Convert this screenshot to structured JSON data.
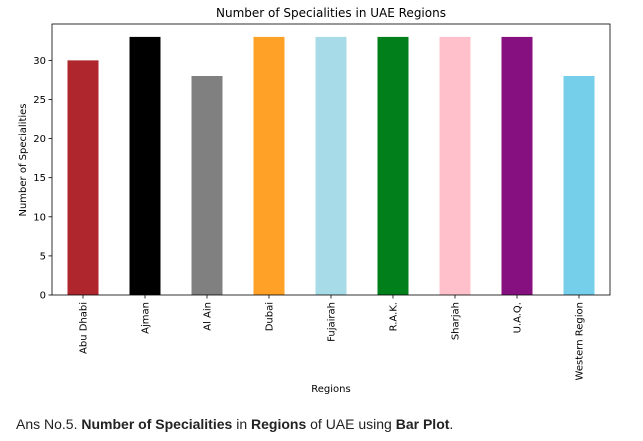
{
  "chart_data": {
    "type": "bar",
    "title": "Number of Specialities in UAE Regions",
    "xlabel": "Regions",
    "ylabel": "Number of Specialities",
    "categories": [
      "Abu Dhabi",
      "Ajman",
      "Al Ain",
      "Dubai",
      "Fujairah",
      "R.A.K.",
      "Sharjah",
      "U.A.Q.",
      "Western Region"
    ],
    "values": [
      30,
      33,
      28,
      33,
      33,
      33,
      33,
      33,
      28
    ],
    "colors": [
      "#b0262d",
      "#000000",
      "#808080",
      "#ffa126",
      "#a7dbe7",
      "#007f1a",
      "#ffc0cb",
      "#871081",
      "#75cfea"
    ],
    "ylim": [
      0,
      34.65
    ],
    "yticks": [
      0,
      5,
      10,
      15,
      20,
      25,
      30
    ],
    "grid": false,
    "legend": "none"
  },
  "caption": {
    "prefix": "Ans No.5. ",
    "bold1": "Number of Specialities",
    "mid1": " in ",
    "bold2": "Regions",
    "mid2": " of UAE using ",
    "bold3": "Bar Plot",
    "suffix": "."
  }
}
